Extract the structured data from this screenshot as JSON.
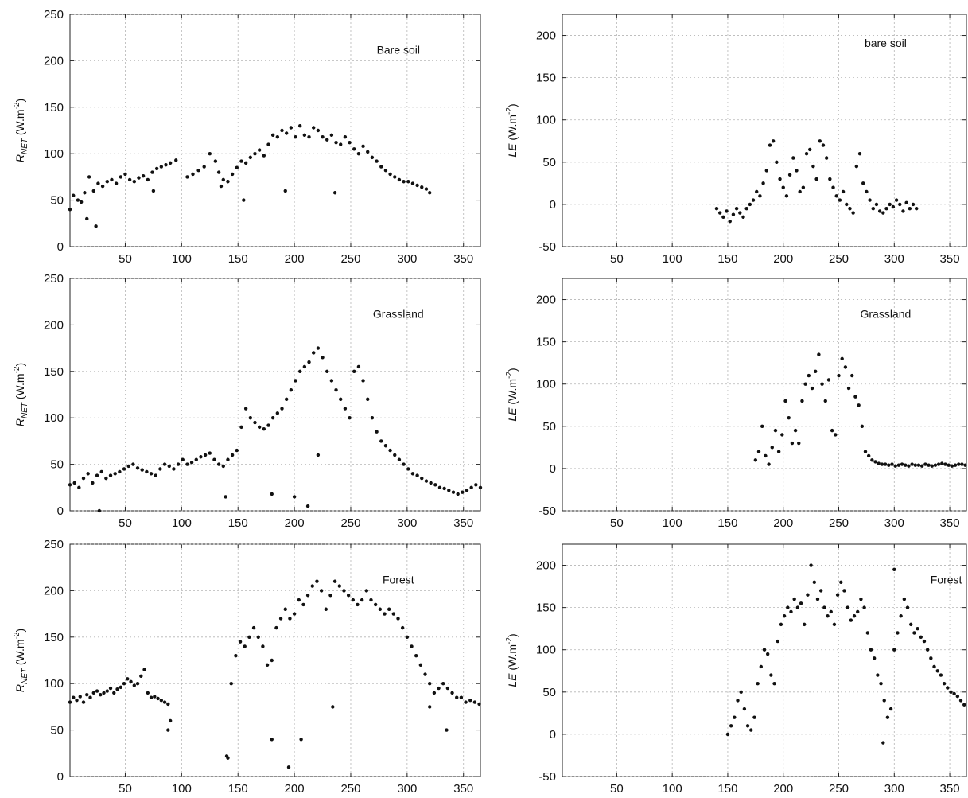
{
  "chart_data": [
    {
      "type": "scatter",
      "panel": "left-top",
      "annotation": "Bare soil",
      "ylabel_main": "R",
      "ylabel_sub": "NET",
      "ylabel_unit": "(W.m",
      "ylabel_exp": "-2",
      "ylabel_close": ")",
      "xlim": [
        1,
        365
      ],
      "ylim": [
        0,
        250
      ],
      "xticks": [
        50,
        100,
        150,
        200,
        250,
        300,
        350
      ],
      "yticks": [
        0,
        50,
        100,
        150,
        200,
        250
      ],
      "grid": true,
      "series": [
        {
          "x": [
            1,
            4,
            8,
            11,
            14,
            18,
            22,
            26,
            30,
            34,
            38,
            42,
            46,
            50,
            54,
            58,
            62,
            66,
            70,
            74,
            78,
            82,
            86,
            90,
            95,
            105,
            110,
            115,
            120,
            125,
            130,
            133,
            137,
            141,
            145,
            149,
            153,
            157,
            161,
            165,
            169,
            173,
            177,
            181,
            185,
            189,
            193,
            197,
            201,
            205,
            209,
            213,
            217,
            221,
            225,
            229,
            233,
            237,
            241,
            245,
            249,
            253,
            257,
            261,
            265,
            269,
            273,
            277,
            281,
            285,
            289,
            293,
            297,
            301,
            305,
            309,
            313,
            317,
            320,
            16,
            24,
            75,
            135,
            155,
            192,
            236
          ],
          "y": [
            40,
            55,
            50,
            48,
            58,
            75,
            60,
            68,
            65,
            70,
            72,
            68,
            75,
            78,
            72,
            70,
            74,
            76,
            72,
            80,
            84,
            86,
            88,
            90,
            93,
            75,
            78,
            82,
            86,
            100,
            92,
            80,
            72,
            70,
            78,
            85,
            92,
            90,
            96,
            100,
            104,
            98,
            110,
            120,
            118,
            125,
            122,
            128,
            118,
            130,
            120,
            118,
            128,
            125,
            118,
            115,
            120,
            112,
            110,
            118,
            112,
            105,
            100,
            108,
            102,
            96,
            92,
            86,
            82,
            78,
            75,
            72,
            70,
            70,
            68,
            66,
            64,
            62,
            58,
            30,
            22,
            60,
            65,
            50,
            60,
            58
          ]
        }
      ]
    },
    {
      "type": "scatter",
      "panel": "right-top",
      "annotation": "bare soil",
      "ylabel_main": "LE",
      "ylabel_unit": "(W.m",
      "ylabel_exp": "-2",
      "ylabel_close": ")",
      "xlim": [
        1,
        365
      ],
      "ylim": [
        -50,
        225
      ],
      "xticks": [
        50,
        100,
        150,
        200,
        250,
        300,
        350
      ],
      "yticks": [
        -50,
        0,
        50,
        100,
        150,
        200
      ],
      "grid": true,
      "series": [
        {
          "x": [
            140,
            143,
            146,
            149,
            152,
            155,
            158,
            161,
            164,
            167,
            170,
            173,
            176,
            179,
            182,
            185,
            188,
            191,
            194,
            197,
            200,
            203,
            206,
            209,
            212,
            215,
            218,
            221,
            224,
            227,
            230,
            233,
            236,
            239,
            242,
            245,
            248,
            251,
            254,
            257,
            260,
            263,
            266,
            269,
            272,
            275,
            278,
            281,
            284,
            287,
            290,
            293,
            296,
            299,
            302,
            305,
            308,
            311,
            314,
            317,
            320
          ],
          "y": [
            -5,
            -10,
            -15,
            -8,
            -20,
            -12,
            -5,
            -10,
            -15,
            -5,
            0,
            5,
            15,
            10,
            25,
            40,
            70,
            75,
            50,
            30,
            20,
            10,
            35,
            55,
            40,
            15,
            20,
            60,
            65,
            45,
            30,
            75,
            70,
            55,
            30,
            20,
            10,
            5,
            15,
            0,
            -5,
            -10,
            45,
            60,
            25,
            15,
            5,
            -5,
            0,
            -8,
            -10,
            -5,
            0,
            -3,
            5,
            0,
            -8,
            2,
            -5,
            0,
            -5
          ]
        }
      ]
    },
    {
      "type": "scatter",
      "panel": "left-middle",
      "annotation": "Grassland",
      "ylabel_main": "R",
      "ylabel_sub": "NET",
      "ylabel_unit": "(W.m",
      "ylabel_exp": "-2",
      "ylabel_close": ")",
      "xlim": [
        1,
        365
      ],
      "ylim": [
        0,
        250
      ],
      "xticks": [
        50,
        100,
        150,
        200,
        250,
        300,
        350
      ],
      "yticks": [
        0,
        50,
        100,
        150,
        200,
        250
      ],
      "grid": true,
      "series": [
        {
          "x": [
            1,
            5,
            9,
            13,
            17,
            21,
            25,
            29,
            33,
            37,
            41,
            45,
            49,
            53,
            57,
            61,
            65,
            69,
            73,
            77,
            81,
            85,
            89,
            93,
            97,
            101,
            105,
            109,
            113,
            117,
            121,
            125,
            129,
            133,
            137,
            141,
            145,
            149,
            153,
            157,
            161,
            165,
            169,
            173,
            177,
            181,
            185,
            189,
            193,
            197,
            201,
            205,
            209,
            213,
            217,
            221,
            225,
            229,
            233,
            237,
            241,
            245,
            249,
            253,
            257,
            261,
            265,
            269,
            273,
            277,
            281,
            285,
            289,
            293,
            297,
            301,
            305,
            309,
            313,
            317,
            321,
            325,
            329,
            333,
            337,
            341,
            345,
            349,
            353,
            357,
            361,
            365,
            27,
            139,
            180,
            200,
            212,
            221
          ],
          "y": [
            28,
            30,
            25,
            35,
            40,
            30,
            38,
            42,
            35,
            38,
            40,
            42,
            45,
            48,
            50,
            46,
            44,
            42,
            40,
            38,
            45,
            50,
            48,
            45,
            50,
            55,
            50,
            52,
            55,
            58,
            60,
            62,
            55,
            50,
            48,
            55,
            60,
            65,
            90,
            110,
            100,
            95,
            90,
            88,
            92,
            100,
            105,
            110,
            120,
            130,
            140,
            150,
            155,
            160,
            170,
            175,
            165,
            150,
            140,
            130,
            120,
            110,
            100,
            150,
            155,
            140,
            120,
            100,
            85,
            75,
            70,
            65,
            60,
            55,
            50,
            45,
            40,
            38,
            35,
            32,
            30,
            28,
            25,
            24,
            22,
            20,
            18,
            20,
            22,
            25,
            28,
            25,
            0,
            15,
            18,
            15,
            5,
            60
          ]
        }
      ]
    },
    {
      "type": "scatter",
      "panel": "right-middle",
      "annotation": "Grassland",
      "ylabel_main": "LE",
      "ylabel_unit": "(W.m",
      "ylabel_exp": "-2",
      "ylabel_close": ")",
      "xlim": [
        1,
        365
      ],
      "ylim": [
        -50,
        225
      ],
      "xticks": [
        50,
        100,
        150,
        200,
        250,
        300,
        350
      ],
      "yticks": [
        -50,
        0,
        50,
        100,
        150,
        200
      ],
      "grid": true,
      "series": [
        {
          "x": [
            175,
            178,
            181,
            184,
            187,
            190,
            193,
            196,
            199,
            202,
            205,
            208,
            211,
            214,
            217,
            220,
            223,
            226,
            229,
            232,
            235,
            238,
            241,
            244,
            247,
            250,
            253,
            256,
            259,
            262,
            265,
            268,
            271,
            274,
            277,
            280,
            283,
            286,
            289,
            292,
            295,
            298,
            301,
            304,
            307,
            310,
            313,
            316,
            319,
            322,
            325,
            328,
            331,
            334,
            337,
            340,
            343,
            346,
            349,
            352,
            355,
            358,
            361,
            364
          ],
          "y": [
            10,
            20,
            50,
            15,
            5,
            25,
            45,
            20,
            40,
            80,
            60,
            30,
            45,
            30,
            80,
            100,
            110,
            95,
            115,
            135,
            100,
            80,
            105,
            45,
            40,
            110,
            130,
            120,
            95,
            110,
            85,
            75,
            50,
            20,
            15,
            10,
            8,
            6,
            5,
            5,
            4,
            5,
            3,
            4,
            5,
            4,
            3,
            5,
            4,
            4,
            3,
            5,
            4,
            3,
            4,
            5,
            6,
            5,
            4,
            3,
            4,
            5,
            5,
            4
          ]
        }
      ]
    },
    {
      "type": "scatter",
      "panel": "left-bottom",
      "annotation": "Forest",
      "ylabel_main": "R",
      "ylabel_sub": "NET",
      "ylabel_unit": "(W.m",
      "ylabel_exp": "-2",
      "ylabel_close": ")",
      "xlim": [
        1,
        365
      ],
      "ylim": [
        0,
        250
      ],
      "xticks": [
        50,
        100,
        150,
        200,
        250,
        300,
        350
      ],
      "yticks": [
        0,
        50,
        100,
        150,
        200,
        250
      ],
      "grid": true,
      "series": [
        {
          "x": [
            1,
            4,
            7,
            10,
            13,
            16,
            19,
            22,
            25,
            28,
            31,
            34,
            37,
            40,
            43,
            46,
            49,
            52,
            55,
            58,
            61,
            64,
            67,
            70,
            73,
            76,
            79,
            82,
            85,
            88,
            140,
            144,
            148,
            152,
            156,
            160,
            164,
            168,
            172,
            176,
            180,
            184,
            188,
            192,
            196,
            200,
            204,
            208,
            212,
            216,
            220,
            224,
            228,
            232,
            236,
            240,
            244,
            248,
            252,
            256,
            260,
            264,
            268,
            272,
            276,
            280,
            284,
            288,
            292,
            296,
            300,
            304,
            308,
            312,
            316,
            320,
            324,
            328,
            332,
            336,
            340,
            344,
            348,
            352,
            356,
            360,
            364,
            141,
            180,
            195,
            206,
            234,
            320,
            335,
            88,
            90
          ],
          "y": [
            80,
            85,
            82,
            86,
            80,
            88,
            85,
            90,
            92,
            88,
            90,
            92,
            95,
            90,
            94,
            96,
            100,
            105,
            102,
            98,
            100,
            108,
            115,
            90,
            85,
            86,
            84,
            82,
            80,
            78,
            22,
            100,
            130,
            145,
            140,
            150,
            160,
            150,
            140,
            120,
            125,
            160,
            170,
            180,
            170,
            175,
            190,
            185,
            195,
            205,
            210,
            200,
            180,
            195,
            210,
            205,
            200,
            195,
            190,
            185,
            190,
            200,
            190,
            185,
            180,
            175,
            180,
            175,
            170,
            160,
            150,
            140,
            130,
            120,
            110,
            100,
            90,
            95,
            100,
            95,
            90,
            85,
            85,
            80,
            82,
            80,
            78,
            20,
            40,
            10,
            40,
            75,
            75,
            50,
            50,
            60
          ]
        }
      ]
    },
    {
      "type": "scatter",
      "panel": "right-bottom",
      "annotation": "Forest",
      "ylabel_main": "LE",
      "ylabel_unit": "(W.m",
      "ylabel_exp": "-2",
      "ylabel_close": ")",
      "xlim": [
        1,
        365
      ],
      "ylim": [
        -50,
        225
      ],
      "xticks": [
        50,
        100,
        150,
        200,
        250,
        300,
        350
      ],
      "yticks": [
        -50,
        0,
        50,
        100,
        150,
        200
      ],
      "grid": true,
      "series": [
        {
          "x": [
            150,
            153,
            156,
            159,
            162,
            165,
            168,
            171,
            174,
            177,
            180,
            183,
            186,
            189,
            192,
            195,
            198,
            201,
            204,
            207,
            210,
            213,
            216,
            219,
            222,
            225,
            228,
            231,
            234,
            237,
            240,
            243,
            246,
            249,
            252,
            255,
            258,
            261,
            264,
            267,
            270,
            273,
            276,
            279,
            282,
            285,
            288,
            291,
            294,
            297,
            300,
            303,
            306,
            309,
            312,
            315,
            318,
            321,
            324,
            327,
            330,
            333,
            336,
            339,
            342,
            345,
            348,
            351,
            354,
            357,
            360,
            363,
            290,
            300
          ],
          "y": [
            0,
            10,
            20,
            40,
            50,
            30,
            10,
            5,
            20,
            60,
            80,
            100,
            95,
            70,
            60,
            110,
            130,
            140,
            150,
            145,
            160,
            150,
            155,
            130,
            165,
            200,
            180,
            160,
            170,
            150,
            140,
            145,
            130,
            165,
            180,
            170,
            150,
            135,
            140,
            145,
            160,
            150,
            120,
            100,
            90,
            70,
            60,
            40,
            20,
            30,
            100,
            120,
            140,
            160,
            150,
            130,
            120,
            125,
            115,
            110,
            100,
            90,
            80,
            75,
            70,
            60,
            55,
            50,
            48,
            45,
            40,
            35,
            -10,
            195
          ]
        }
      ]
    }
  ]
}
